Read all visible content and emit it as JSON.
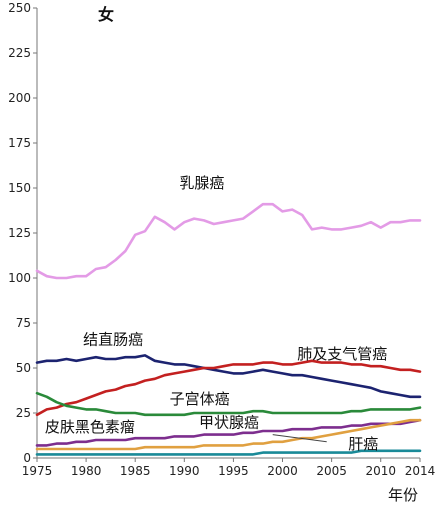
{
  "chart_data": {
    "type": "line",
    "title": "女",
    "xlabel": "年份",
    "ylabel": "",
    "xlim": [
      1975,
      2014
    ],
    "ylim": [
      0,
      250
    ],
    "grid": false,
    "x_ticks": [
      "1975",
      "1980",
      "1985",
      "1990",
      "1995",
      "2000",
      "2005",
      "2010",
      "2014"
    ],
    "y_ticks": [
      "0",
      "25",
      "50",
      "75",
      "100",
      "125",
      "150",
      "175",
      "200",
      "225",
      "250"
    ],
    "x": [
      1975,
      1976,
      1977,
      1978,
      1979,
      1980,
      1981,
      1982,
      1983,
      1984,
      1985,
      1986,
      1987,
      1988,
      1989,
      1990,
      1991,
      1992,
      1993,
      1994,
      1995,
      1996,
      1997,
      1998,
      1999,
      2000,
      2001,
      2002,
      2003,
      2004,
      2005,
      2006,
      2007,
      2008,
      2009,
      2010,
      2011,
      2012,
      2013,
      2014
    ],
    "series": [
      {
        "name": "乳腺癌",
        "color": "#e39be6",
        "values": [
          104,
          101,
          100,
          100,
          101,
          101,
          105,
          106,
          110,
          115,
          124,
          126,
          134,
          131,
          127,
          131,
          133,
          132,
          130,
          131,
          132,
          133,
          137,
          141,
          141,
          137,
          138,
          135,
          127,
          128,
          127,
          127,
          128,
          129,
          131,
          128,
          131,
          131,
          132,
          132
        ]
      },
      {
        "name": "结直肠癌",
        "color": "#1c2370",
        "values": [
          53,
          54,
          54,
          55,
          54,
          55,
          56,
          55,
          55,
          56,
          56,
          57,
          54,
          53,
          52,
          52,
          51,
          50,
          49,
          48,
          47,
          47,
          48,
          49,
          48,
          47,
          46,
          46,
          45,
          44,
          43,
          42,
          41,
          40,
          39,
          37,
          36,
          35,
          34,
          34
        ]
      },
      {
        "name": "肺及支气管癌",
        "color": "#c32020",
        "values": [
          24,
          27,
          28,
          30,
          31,
          33,
          35,
          37,
          38,
          40,
          41,
          43,
          44,
          46,
          47,
          48,
          49,
          50,
          50,
          51,
          52,
          52,
          52,
          53,
          53,
          52,
          52,
          53,
          54,
          53,
          53,
          53,
          52,
          52,
          51,
          51,
          50,
          49,
          49,
          48
        ]
      },
      {
        "name": "子宫体癌",
        "color": "#2a8a3a",
        "values": [
          36,
          34,
          31,
          29,
          28,
          27,
          27,
          26,
          25,
          25,
          25,
          24,
          24,
          24,
          24,
          24,
          25,
          25,
          25,
          25,
          25,
          25,
          26,
          26,
          25,
          25,
          25,
          25,
          25,
          25,
          25,
          25,
          26,
          26,
          27,
          27,
          27,
          27,
          27,
          28
        ]
      },
      {
        "name": "皮肤黑色素瘤",
        "color": "#7d2e8e",
        "values": [
          7,
          7,
          8,
          8,
          9,
          9,
          10,
          10,
          10,
          10,
          11,
          11,
          11,
          11,
          12,
          12,
          12,
          13,
          13,
          13,
          13,
          14,
          14,
          15,
          15,
          15,
          16,
          16,
          16,
          17,
          17,
          17,
          18,
          18,
          19,
          19,
          19,
          19,
          20,
          21
        ]
      },
      {
        "name": "甲状腺癌",
        "color": "#e0a040",
        "values": [
          5,
          5,
          5,
          5,
          5,
          5,
          5,
          5,
          5,
          5,
          5,
          6,
          6,
          6,
          6,
          6,
          6,
          7,
          7,
          7,
          7,
          7,
          8,
          8,
          9,
          9,
          10,
          11,
          11,
          12,
          13,
          14,
          15,
          16,
          17,
          18,
          19,
          20,
          21,
          21
        ]
      },
      {
        "name": "肝癌",
        "color": "#1a8a98",
        "values": [
          2,
          2,
          2,
          2,
          2,
          2,
          2,
          2,
          2,
          2,
          2,
          2,
          2,
          2,
          2,
          2,
          2,
          2,
          2,
          2,
          2,
          2,
          2,
          3,
          3,
          3,
          3,
          3,
          3,
          3,
          3,
          3,
          3,
          4,
          4,
          4,
          4,
          4,
          4,
          4
        ]
      }
    ]
  }
}
